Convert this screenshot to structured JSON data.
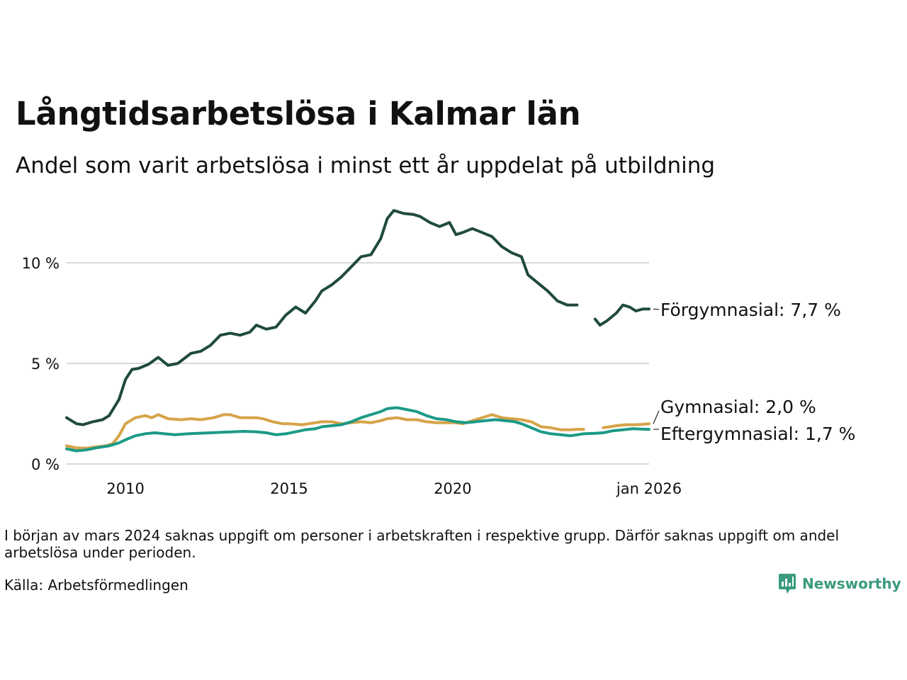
{
  "chart_data": {
    "type": "line",
    "title": "Långtidsarbetslösa i Kalmar län",
    "subtitle": "Andel som varit arbetslösa i minst ett år uppdelat på utbildning",
    "xlabel": "",
    "ylabel": "",
    "ylim": [
      0,
      12.8
    ],
    "xlim": [
      2008.2,
      2026.0
    ],
    "y_ticks": [
      {
        "value": 0,
        "label": "0 %"
      },
      {
        "value": 5,
        "label": "5 %"
      },
      {
        "value": 10,
        "label": "10 %"
      }
    ],
    "x_ticks": [
      {
        "value": 2010,
        "label": "2010"
      },
      {
        "value": 2015,
        "label": "2015"
      },
      {
        "value": 2020,
        "label": "2020"
      },
      {
        "value": 2026.0,
        "label": "jan 2026"
      }
    ],
    "gap": [
      2024.0,
      2024.35
    ],
    "grid": "horizontal",
    "series": [
      {
        "name": "Förgymnasial",
        "end_label": "Förgymnasial: 7,7 %",
        "color": "#1f4a40",
        "x": [
          2008.2,
          2008.5,
          2008.7,
          2009.0,
          2009.3,
          2009.5,
          2009.8,
          2010.0,
          2010.2,
          2010.4,
          2010.7,
          2011.0,
          2011.3,
          2011.6,
          2012.0,
          2012.3,
          2012.6,
          2012.9,
          2013.2,
          2013.5,
          2013.8,
          2014.0,
          2014.3,
          2014.6,
          2014.9,
          2015.2,
          2015.5,
          2015.8,
          2016.0,
          2016.3,
          2016.6,
          2016.9,
          2017.2,
          2017.5,
          2017.8,
          2018.0,
          2018.2,
          2018.5,
          2018.8,
          2019.0,
          2019.3,
          2019.6,
          2019.9,
          2020.1,
          2020.3,
          2020.6,
          2020.9,
          2021.2,
          2021.5,
          2021.8,
          2022.1,
          2022.3,
          2022.6,
          2022.9,
          2023.2,
          2023.5,
          2023.8,
          2024.0,
          2024.35,
          2024.5,
          2024.7,
          2025.0,
          2025.2,
          2025.4,
          2025.6,
          2025.8,
          2026.0
        ],
        "values": [
          2.3,
          2.0,
          1.95,
          2.1,
          2.2,
          2.4,
          3.2,
          4.2,
          4.7,
          4.75,
          4.95,
          5.3,
          4.9,
          5.0,
          5.5,
          5.6,
          5.9,
          6.4,
          6.5,
          6.4,
          6.55,
          6.9,
          6.7,
          6.8,
          7.4,
          7.8,
          7.5,
          8.1,
          8.6,
          8.9,
          9.3,
          9.8,
          10.3,
          10.4,
          11.2,
          12.2,
          12.6,
          12.45,
          12.4,
          12.3,
          12.0,
          11.8,
          12.0,
          11.4,
          11.5,
          11.7,
          11.5,
          11.3,
          10.8,
          10.5,
          10.3,
          9.4,
          9.0,
          8.6,
          8.1,
          7.9,
          7.9,
          null,
          7.2,
          6.9,
          7.1,
          7.5,
          7.9,
          7.8,
          7.6,
          7.7,
          7.7
        ]
      },
      {
        "name": "Gymnasial",
        "end_label": "Gymnasial: 2,0 %",
        "color": "#d6a348",
        "x": [
          2008.2,
          2008.5,
          2008.8,
          2009.1,
          2009.4,
          2009.6,
          2009.8,
          2010.0,
          2010.3,
          2010.6,
          2010.8,
          2011.0,
          2011.3,
          2011.7,
          2012.0,
          2012.3,
          2012.7,
          2013.0,
          2013.2,
          2013.5,
          2013.8,
          2014.0,
          2014.2,
          2014.5,
          2014.8,
          2015.0,
          2015.4,
          2015.8,
          2016.0,
          2016.3,
          2016.6,
          2016.9,
          2017.2,
          2017.5,
          2017.8,
          2018.0,
          2018.3,
          2018.6,
          2018.9,
          2019.2,
          2019.5,
          2019.8,
          2020.1,
          2020.3,
          2020.6,
          2020.9,
          2021.2,
          2021.5,
          2021.8,
          2022.1,
          2022.4,
          2022.7,
          2023.0,
          2023.3,
          2023.6,
          2023.8,
          2024.0,
          2024.35,
          2024.6,
          2024.8,
          2025.0,
          2025.3,
          2025.6,
          2025.8,
          2026.0
        ],
        "values": [
          0.9,
          0.8,
          0.78,
          0.85,
          0.9,
          1.0,
          1.4,
          2.0,
          2.3,
          2.4,
          2.3,
          2.45,
          2.25,
          2.2,
          2.25,
          2.2,
          2.3,
          2.45,
          2.45,
          2.3,
          2.3,
          2.3,
          2.25,
          2.1,
          2.0,
          2.0,
          1.95,
          2.05,
          2.1,
          2.1,
          2.0,
          2.05,
          2.1,
          2.05,
          2.15,
          2.25,
          2.3,
          2.2,
          2.2,
          2.1,
          2.05,
          2.05,
          2.05,
          2.0,
          2.15,
          2.3,
          2.45,
          2.3,
          2.25,
          2.2,
          2.1,
          1.85,
          1.8,
          1.7,
          1.7,
          1.72,
          1.72,
          null,
          1.8,
          1.85,
          1.9,
          1.95,
          1.95,
          1.97,
          2.0
        ]
      },
      {
        "name": "Eftergymnasial",
        "end_label": "Eftergymnasial: 1,7 %",
        "color": "#1b9a86",
        "x": [
          2008.2,
          2008.5,
          2008.8,
          2009.1,
          2009.5,
          2009.8,
          2010.0,
          2010.3,
          2010.6,
          2010.9,
          2011.2,
          2011.5,
          2011.9,
          2012.2,
          2012.6,
          2013.0,
          2013.3,
          2013.6,
          2014.0,
          2014.3,
          2014.6,
          2014.9,
          2015.2,
          2015.5,
          2015.8,
          2016.0,
          2016.3,
          2016.6,
          2016.9,
          2017.2,
          2017.5,
          2017.8,
          2018.0,
          2018.3,
          2018.6,
          2018.9,
          2019.2,
          2019.5,
          2019.8,
          2020.1,
          2020.4,
          2020.7,
          2021.0,
          2021.3,
          2021.6,
          2021.9,
          2022.1,
          2022.4,
          2022.7,
          2023.0,
          2023.3,
          2023.6,
          2023.8,
          2024.0,
          2024.35,
          2024.6,
          2024.9,
          2025.2,
          2025.5,
          2025.8,
          2026.0
        ],
        "values": [
          0.75,
          0.65,
          0.7,
          0.8,
          0.9,
          1.05,
          1.2,
          1.4,
          1.5,
          1.55,
          1.5,
          1.45,
          1.5,
          1.52,
          1.55,
          1.58,
          1.6,
          1.62,
          1.6,
          1.55,
          1.45,
          1.5,
          1.6,
          1.7,
          1.75,
          1.85,
          1.9,
          1.95,
          2.1,
          2.3,
          2.45,
          2.6,
          2.75,
          2.8,
          2.7,
          2.6,
          2.4,
          2.25,
          2.2,
          2.1,
          2.05,
          2.1,
          2.15,
          2.2,
          2.15,
          2.1,
          2.0,
          1.8,
          1.6,
          1.5,
          1.45,
          1.4,
          1.45,
          1.5,
          1.52,
          1.55,
          1.65,
          1.7,
          1.75,
          1.73,
          1.72
        ]
      }
    ]
  },
  "footer": {
    "note": "I början av mars 2024 saknas uppgift om personer i arbetskraften i respektive grupp. Därför saknas uppgift om andel arbetslösa under perioden.",
    "source": "Källa: Arbetsförmedlingen",
    "logo_text": "Newsworthy",
    "logo_color": "#3a9a7f"
  }
}
